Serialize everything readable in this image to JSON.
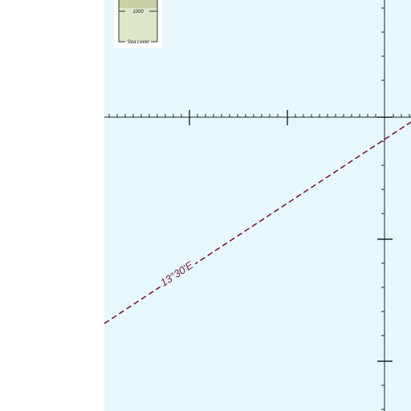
{
  "map": {
    "colors": {
      "land": "#ffffff",
      "sea": "#e6f8fc",
      "grid": "#222222",
      "meridian": "#7a1a3a",
      "legend_high": "#c9d0a6",
      "legend_low": "#dde6c9"
    },
    "legend": {
      "elevation_label": "1000",
      "sea_level_label": "Sea Level"
    },
    "meridian": {
      "label": "13°30'E",
      "line_style": "dashed"
    }
  }
}
